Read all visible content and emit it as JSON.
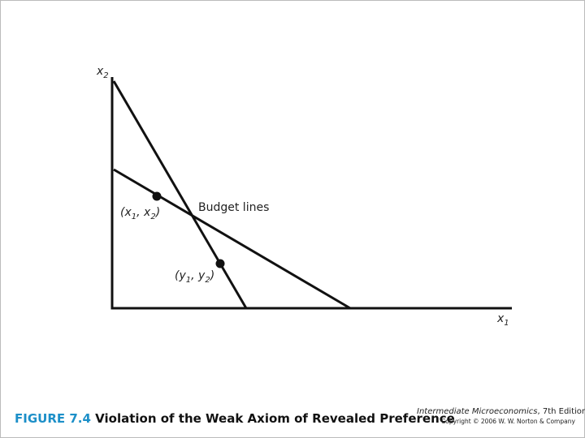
{
  "figure": {
    "y_axis_label": [
      {
        "text": "x"
      },
      {
        "sub": "2"
      }
    ],
    "x_axis_label": [
      {
        "text": "x"
      },
      {
        "sub": "1"
      }
    ],
    "budget_label": "Budget lines",
    "point_x_label": [
      {
        "text": "(x"
      },
      {
        "sub": "1"
      },
      {
        "text": ",  x"
      },
      {
        "sub": "2"
      },
      {
        "text": ")"
      }
    ],
    "point_y_label": [
      {
        "text": "(y"
      },
      {
        "sub": "1"
      },
      {
        "text": ",  y"
      },
      {
        "sub": "2"
      },
      {
        "text": ")"
      }
    ]
  },
  "caption": {
    "number": "FIGURE 7.4",
    "title": "Violation of the Weak Axiom of Revealed Preference"
  },
  "credit": {
    "book": "Intermediate Microeconomics",
    "edition": ", 7th Edition",
    "copyright": "Copyright © 2006 W. W. Norton & Company"
  }
}
